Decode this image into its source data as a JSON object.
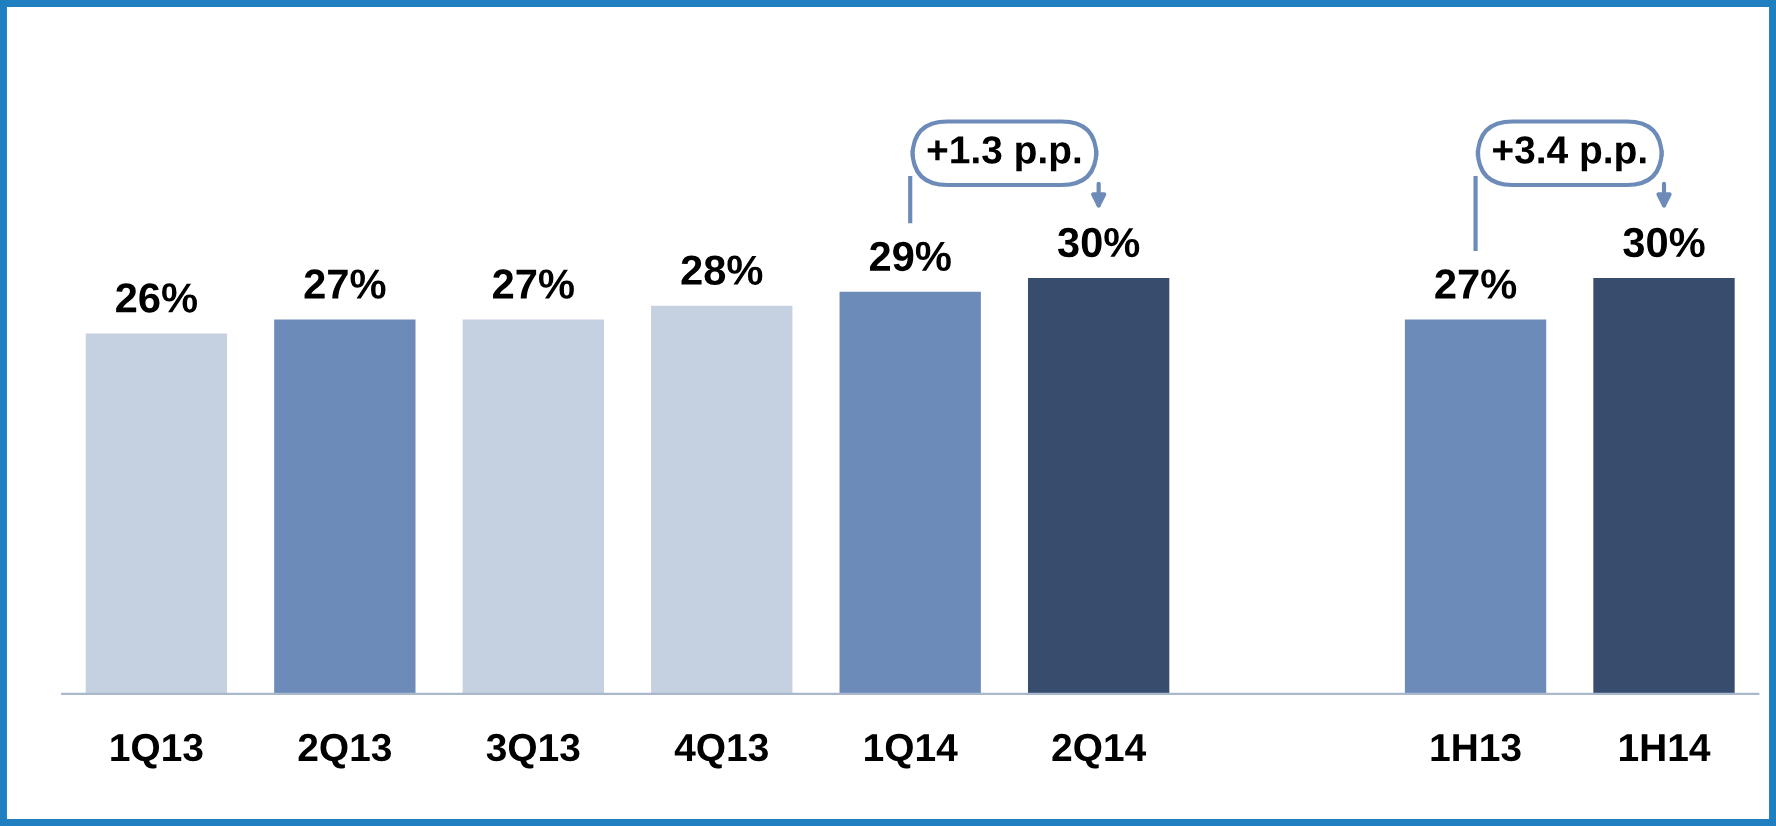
{
  "chart_data": {
    "type": "bar",
    "categories": [
      "1Q13",
      "2Q13",
      "3Q13",
      "4Q13",
      "1Q14",
      "2Q14",
      null,
      "1H13",
      "1H14"
    ],
    "values": [
      26,
      27,
      27,
      28,
      29,
      30,
      null,
      27,
      30
    ],
    "value_labels": [
      "26%",
      "27%",
      "27%",
      "28%",
      "29%",
      "30%",
      null,
      "27%",
      "30%"
    ],
    "colors": [
      "#c5d0e1",
      "#6d8bb9",
      "#c5d0e1",
      "#c5d0e1",
      "#6d8bb9",
      "#374d6e",
      null,
      "#6d8bb9",
      "#374d6e"
    ],
    "annotations": [
      "+1.3 p.p.",
      "+3.4 p.p."
    ]
  }
}
